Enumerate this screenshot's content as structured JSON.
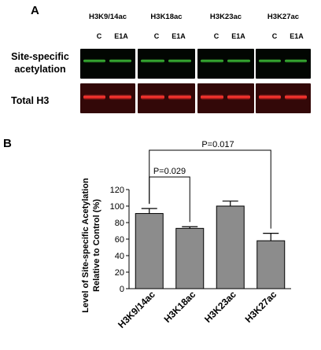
{
  "panel_a": {
    "letter": "A",
    "columns": [
      {
        "title": "H3K9/14ac",
        "lanes": [
          "C",
          "E1A"
        ]
      },
      {
        "title": "H3K18ac",
        "lanes": [
          "C",
          "E1A"
        ]
      },
      {
        "title": "H3K23ac",
        "lanes": [
          "C",
          "E1A"
        ]
      },
      {
        "title": "H3K27ac",
        "lanes": [
          "C",
          "E1A"
        ]
      }
    ],
    "rows": [
      {
        "label_line1": "Site-specific",
        "label_line2": "acetylation",
        "color": "#3fbf3a"
      },
      {
        "label_line1": "Total H3",
        "label_line2": "",
        "color": "#f5302c"
      }
    ]
  },
  "panel_b": {
    "letter": "B",
    "comparisons": [
      {
        "label": "P=0.029",
        "from": "H3K9/14ac",
        "to": "H3K18ac"
      },
      {
        "label": "P=0.017",
        "from": "H3K9/14ac",
        "to": "H3K27ac"
      }
    ]
  },
  "chart_data": {
    "type": "bar",
    "categories": [
      "H3K9/14ac",
      "H3K18ac",
      "H3K23ac",
      "H3K27ac"
    ],
    "values": [
      91,
      73,
      100,
      58
    ],
    "errors": [
      6,
      2,
      6,
      9
    ],
    "ylabel": "Level of Site-specific Acetylation Relative to Control (%)",
    "ylabel_lines": [
      "Level of Site-specific Acetylation",
      "Relative to Control (%)"
    ],
    "ylim": [
      0,
      120
    ],
    "yticks": [
      0,
      20,
      40,
      60,
      80,
      100,
      120
    ],
    "bar_color": "#8c8c8c",
    "grid": false
  }
}
